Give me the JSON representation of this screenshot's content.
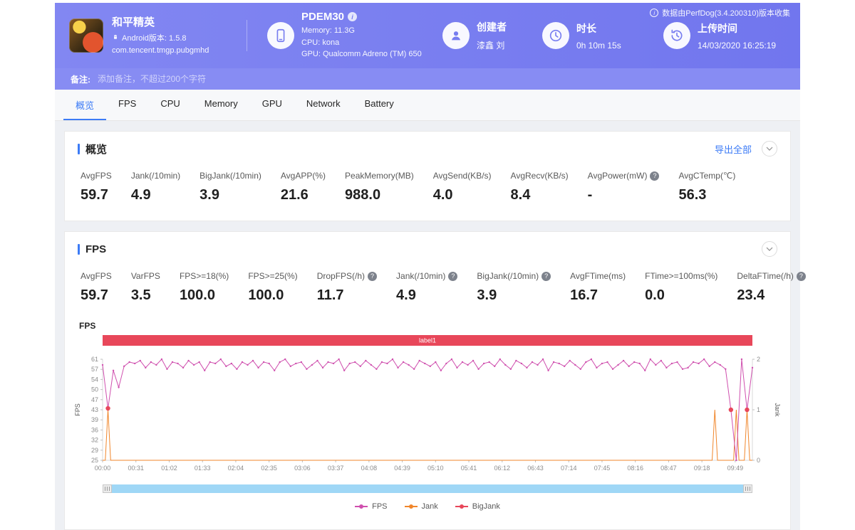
{
  "page": {
    "collect_info": "数据由PerfDog(3.4.200310)版本收集"
  },
  "colors": {
    "accent": "#3c7bf6",
    "header_from": "#8287f2",
    "header_to": "#7176ee",
    "fps_line": "#cf4fae",
    "jank_line": "#f0862b",
    "bigjank": "#e8475a",
    "scene_label_bg": "#e8475a",
    "scrollbar": "#9fd7f6"
  },
  "header": {
    "game": {
      "title": "和平精英",
      "android_version": "Android版本: 1.5.8",
      "package": "com.tencent.tmgp.pubgmhd"
    },
    "device": {
      "name": "PDEM30",
      "memory": "Memory: 11.3G",
      "cpu": "CPU: kona",
      "gpu": "GPU: Qualcomm Adreno (TM) 650"
    },
    "creator": {
      "label": "创建者",
      "value": "漆鑫 刘"
    },
    "duration": {
      "label": "时长",
      "value": "0h 10m 15s"
    },
    "upload": {
      "label": "上传时间",
      "value": "14/03/2020 16:25:19"
    }
  },
  "note": {
    "label": "备注:",
    "placeholder": "添加备注，不超过200个字符"
  },
  "tabs": [
    {
      "label": "概览",
      "active": true
    },
    {
      "label": "FPS",
      "active": false
    },
    {
      "label": "CPU",
      "active": false
    },
    {
      "label": "Memory",
      "active": false
    },
    {
      "label": "GPU",
      "active": false
    },
    {
      "label": "Network",
      "active": false
    },
    {
      "label": "Battery",
      "active": false
    }
  ],
  "overview": {
    "title": "概览",
    "export_label": "导出全部",
    "metrics": [
      {
        "label": "AvgFPS",
        "value": "59.7",
        "help": false
      },
      {
        "label": "Jank(/10min)",
        "value": "4.9",
        "help": false
      },
      {
        "label": "BigJank(/10min)",
        "value": "3.9",
        "help": false
      },
      {
        "label": "AvgAPP(%)",
        "value": "21.6",
        "help": false
      },
      {
        "label": "PeakMemory(MB)",
        "value": "988.0",
        "help": false
      },
      {
        "label": "AvgSend(KB/s)",
        "value": "4.0",
        "help": false
      },
      {
        "label": "AvgRecv(KB/s)",
        "value": "8.4",
        "help": false
      },
      {
        "label": "AvgPower(mW)",
        "value": "-",
        "help": true
      },
      {
        "label": "AvgCTemp(℃)",
        "value": "56.3",
        "help": false
      }
    ]
  },
  "fps_section": {
    "title": "FPS",
    "chart_title": "FPS",
    "metrics": [
      {
        "label": "AvgFPS",
        "value": "59.7",
        "help": false
      },
      {
        "label": "VarFPS",
        "value": "3.5",
        "help": false
      },
      {
        "label": "FPS>=18(%)",
        "value": "100.0",
        "help": false
      },
      {
        "label": "FPS>=25(%)",
        "value": "100.0",
        "help": false
      },
      {
        "label": "DropFPS(/h)",
        "value": "11.7",
        "help": true
      },
      {
        "label": "Jank(/10min)",
        "value": "4.9",
        "help": true
      },
      {
        "label": "BigJank(/10min)",
        "value": "3.9",
        "help": true
      },
      {
        "label": "AvgFTime(ms)",
        "value": "16.7",
        "help": false
      },
      {
        "label": "FTime>=100ms(%)",
        "value": "0.0",
        "help": false
      },
      {
        "label": "DeltaFTime(/h)",
        "value": "23.4",
        "help": true
      }
    ]
  },
  "chart_data": {
    "type": "line",
    "title": "FPS",
    "grid": false,
    "legend_position": "bottom",
    "scene_label": {
      "text": "label1",
      "color": "#e8475a"
    },
    "x_ticks": [
      "00:00",
      "00:31",
      "01:02",
      "01:33",
      "02:04",
      "02:35",
      "03:06",
      "03:37",
      "04:08",
      "04:39",
      "05:10",
      "05:41",
      "06:12",
      "06:43",
      "07:14",
      "07:45",
      "08:16",
      "08:47",
      "09:18",
      "09:49"
    ],
    "x_tick_interval_s": 31,
    "t_max_s": 605,
    "y_left": {
      "label": "FPS",
      "ticks": [
        25,
        29,
        32,
        36,
        39,
        43,
        47,
        50,
        54,
        57,
        61
      ],
      "range": [
        25,
        61
      ]
    },
    "y_right": {
      "label": "Jank",
      "ticks": [
        0,
        1,
        2
      ],
      "range": [
        0,
        2
      ]
    },
    "series": [
      {
        "name": "FPS",
        "color": "#cf4fae",
        "t_start": 0,
        "t_step": 5,
        "v": [
          59,
          43.5,
          57,
          51,
          58.5,
          60,
          59.5,
          60.5,
          58,
          60,
          59,
          61,
          57.5,
          60,
          59.5,
          58,
          60.5,
          59,
          60,
          57,
          60,
          59.5,
          61,
          58.5,
          59.5,
          57.5,
          60,
          59,
          60.5,
          58,
          60,
          59.5,
          57,
          60,
          61,
          58.5,
          59.5,
          60,
          57.5,
          59,
          60.5,
          58,
          60,
          59.5,
          61,
          57,
          59.5,
          60,
          58.5,
          60.5,
          59,
          57.5,
          60,
          59.5,
          61,
          58,
          60,
          59,
          57.5,
          60.5,
          59.5,
          58.5,
          60,
          57,
          59.5,
          61,
          58,
          60,
          59,
          60.5,
          57.5,
          59.5,
          60,
          58.5,
          61,
          59,
          57.5,
          60.5,
          59.5,
          58,
          60,
          59,
          61,
          57,
          60,
          59.5,
          58.5,
          60.5,
          59,
          57.5,
          60,
          61,
          58,
          59.5,
          60,
          57.5,
          59,
          60.5,
          58.5,
          60,
          59.5,
          57,
          61,
          59,
          60.5,
          58,
          59.5,
          60,
          57.5,
          58,
          60,
          59.5,
          61,
          58.5,
          60,
          59,
          57.5,
          43,
          25,
          61,
          43,
          58
        ]
      },
      {
        "name": "Jank",
        "color": "#f0862b",
        "baseline": 0,
        "spikes": [
          {
            "t": 5,
            "v": 1
          },
          {
            "t": 570,
            "v": 1
          },
          {
            "t": 590,
            "v": 1
          },
          {
            "t": 600,
            "v": 1
          }
        ]
      },
      {
        "name": "BigJank",
        "color": "#e8475a",
        "points": [
          {
            "t": 5,
            "fps": 43.5
          },
          {
            "t": 585,
            "fps": 43
          },
          {
            "t": 600,
            "fps": 43
          }
        ]
      }
    ]
  }
}
